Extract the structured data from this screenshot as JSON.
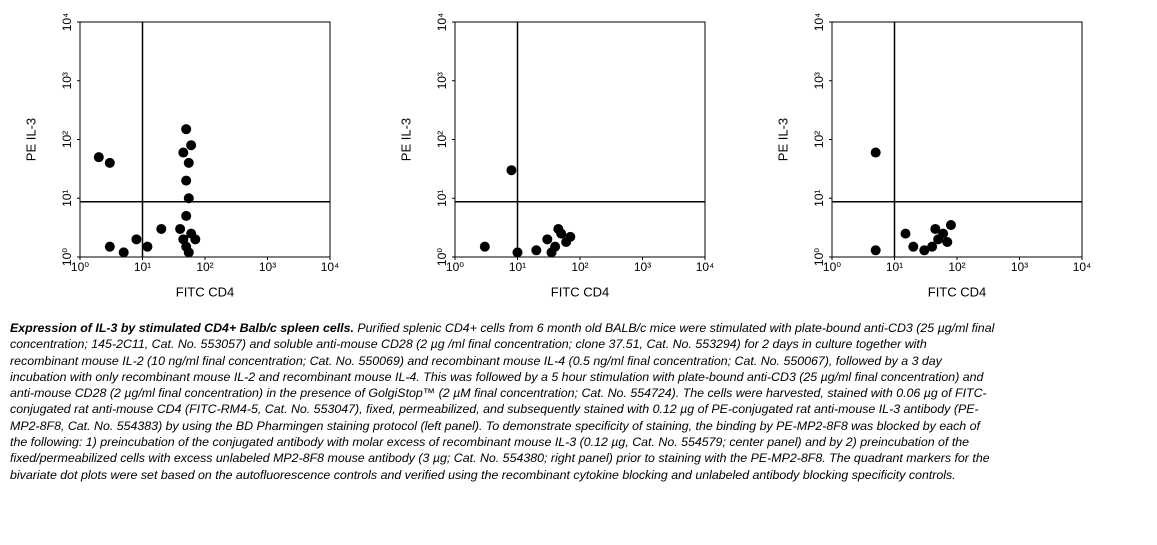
{
  "chart_data": [
    {
      "type": "scatter",
      "x_label": "FITC CD4",
      "y_label": "PE IL-3",
      "log_scale": true,
      "color": "#000000",
      "xlim": [
        1,
        10000
      ],
      "ylim": [
        1,
        10000
      ],
      "xticks": [
        {
          "value": 1,
          "label": "10⁰"
        },
        {
          "value": 10,
          "label": "10¹"
        },
        {
          "value": 100,
          "label": "10²"
        },
        {
          "value": 1000,
          "label": "10³"
        },
        {
          "value": 10000,
          "label": "10⁴"
        }
      ],
      "yticks": [
        {
          "value": 1,
          "label": "10⁰"
        },
        {
          "value": 10,
          "label": "10¹"
        },
        {
          "value": 100,
          "label": "10²"
        },
        {
          "value": 1000,
          "label": "10³"
        },
        {
          "value": 10000,
          "label": "10⁴"
        }
      ],
      "quadrant_x": 10,
      "quadrant_y": 8.7,
      "x": [
        50,
        45,
        60,
        55,
        40,
        70,
        50,
        55,
        50,
        55,
        60,
        50,
        45,
        12,
        8,
        5,
        3,
        3,
        2,
        20
      ],
      "y": [
        1.5,
        2,
        2.5,
        1.2,
        3,
        2,
        5,
        10,
        20,
        40,
        80,
        150,
        60,
        1.5,
        2,
        1.2,
        1.5,
        40,
        50,
        3
      ]
    },
    {
      "type": "scatter",
      "x_label": "FITC CD4",
      "y_label": "PE IL-3",
      "log_scale": true,
      "color": "#000000",
      "xlim": [
        1,
        10000
      ],
      "ylim": [
        1,
        10000
      ],
      "xticks": [
        {
          "value": 1,
          "label": "10⁰"
        },
        {
          "value": 10,
          "label": "10¹"
        },
        {
          "value": 100,
          "label": "10²"
        },
        {
          "value": 1000,
          "label": "10³"
        },
        {
          "value": 10000,
          "label": "10⁴"
        }
      ],
      "yticks": [
        {
          "value": 1,
          "label": "10⁰"
        },
        {
          "value": 10,
          "label": "10¹"
        },
        {
          "value": 100,
          "label": "10²"
        },
        {
          "value": 1000,
          "label": "10³"
        },
        {
          "value": 10000,
          "label": "10⁴"
        }
      ],
      "quadrant_x": 10,
      "quadrant_y": 8.7,
      "x": [
        40,
        30,
        50,
        60,
        35,
        45,
        20,
        70,
        10,
        3,
        8
      ],
      "y": [
        1.5,
        2,
        2.5,
        1.8,
        1.2,
        3,
        1.3,
        2.2,
        1.2,
        1.5,
        30
      ]
    },
    {
      "type": "scatter",
      "x_label": "FITC CD4",
      "y_label": "PE IL-3",
      "log_scale": true,
      "color": "#000000",
      "xlim": [
        1,
        10000
      ],
      "ylim": [
        1,
        10000
      ],
      "xticks": [
        {
          "value": 1,
          "label": "10⁰"
        },
        {
          "value": 10,
          "label": "10¹"
        },
        {
          "value": 100,
          "label": "10²"
        },
        {
          "value": 1000,
          "label": "10³"
        },
        {
          "value": 10000,
          "label": "10⁴"
        }
      ],
      "yticks": [
        {
          "value": 1,
          "label": "10⁰"
        },
        {
          "value": 10,
          "label": "10¹"
        },
        {
          "value": 100,
          "label": "10²"
        },
        {
          "value": 1000,
          "label": "10³"
        },
        {
          "value": 10000,
          "label": "10⁴"
        }
      ],
      "quadrant_x": 10,
      "quadrant_y": 8.7,
      "x": [
        50,
        40,
        60,
        70,
        30,
        45,
        80,
        20,
        5,
        15,
        5
      ],
      "y": [
        2,
        1.5,
        2.5,
        1.8,
        1.3,
        3,
        3.5,
        1.5,
        1.3,
        2.5,
        60
      ]
    }
  ],
  "caption": {
    "title": "Expression of IL-3 by stimulated CD4+ Balb/c spleen cells.",
    "text": "Purified splenic CD4+ cells from 6 month old BALB/c mice were stimulated with plate-bound anti-CD3 (25 µg/ml final concentration; 145-2C11, Cat. No. 553057) and soluble anti-mouse CD28 (2 µg /ml final concentration; clone 37.51, Cat. No. 553294) for 2 days in culture together with recombinant mouse IL-2 (10 ng/ml final concentration; Cat. No. 550069) and recombinant mouse IL-4 (0.5 ng/ml final concentration; Cat. No. 550067), followed by a 3 day incubation with only recombinant mouse IL-2 and recombinant mouse IL-4. This was followed by a 5 hour stimulation with plate-bound anti-CD3 (25 µg/ml final concentration) and anti-mouse CD28 (2 µg/ml final concentration) in the presence of GolgiStop™ (2 µM final concentration; Cat. No. 554724). The cells were harvested, stained with 0.06 µg of FITC-conjugated rat anti-mouse CD4 (FITC-RM4-5, Cat. No. 553047), fixed, permeabilized, and subsequently stained with 0.12 µg of PE-conjugated rat anti-mouse IL-3 antibody (PE-MP2-8F8, Cat. No. 554383) by using the BD Pharmingen staining protocol (left panel). To demonstrate specificity of staining, the binding by PE-MP2-8F8 was blocked by each of the following: 1) preincubation of the conjugated antibody with molar excess of recombinant mouse IL-3 (0.12 µg, Cat. No. 554579; center panel) and by 2) preincubation of the fixed/permeabilized cells with excess unlabeled MP2-8F8 mouse antibody (3 µg; Cat. No. 554380; right panel) prior to staining with the PE-MP2-8F8. The quadrant markers for the bivariate dot plots were set based on the autofluorescence controls and verified using the recombinant cytokine blocking and unlabeled antibody blocking specificity controls."
  }
}
